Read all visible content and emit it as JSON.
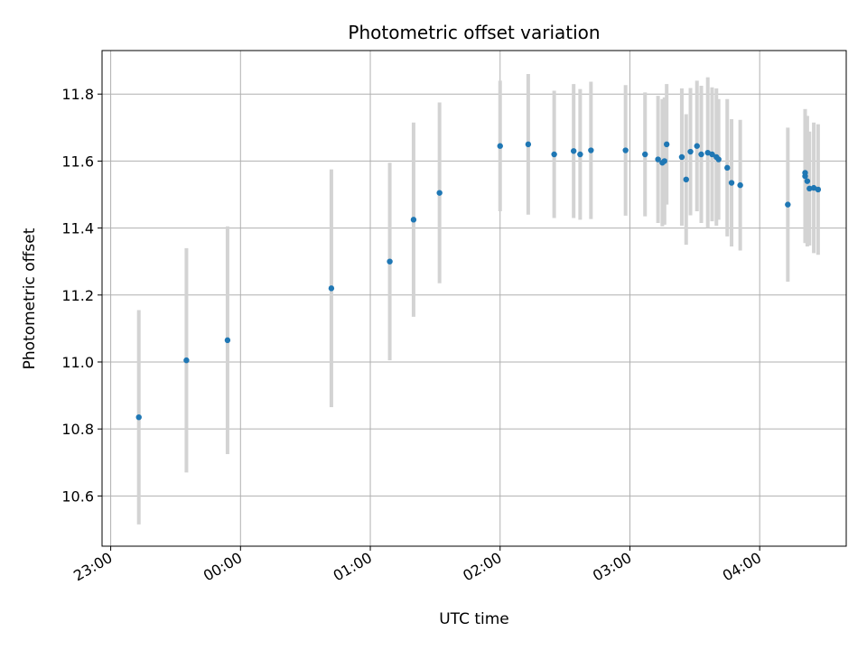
{
  "chart_data": {
    "type": "scatter",
    "title": "Photometric offset variation",
    "xlabel": "UTC time",
    "ylabel": "Photometric offset",
    "x_tick_labels": [
      "23:00",
      "00:00",
      "01:00",
      "02:00",
      "03:00",
      "04:00"
    ],
    "y_tick_labels": [
      "10.6",
      "10.8",
      "11.0",
      "11.2",
      "11.4",
      "11.6",
      "11.8"
    ],
    "x_range_minutes_since_23h": [
      -4,
      340
    ],
    "y_range": [
      10.45,
      11.93
    ],
    "grid": true,
    "colors": {
      "marker": "#1f77b4",
      "errorbar": "#d3d3d3",
      "grid": "#b0b0b0"
    },
    "points": [
      {
        "t": "23:13",
        "y": 10.835,
        "err": 0.32
      },
      {
        "t": "23:35",
        "y": 11.005,
        "err": 0.335
      },
      {
        "t": "23:54",
        "y": 11.065,
        "err": 0.34
      },
      {
        "t": "00:42",
        "y": 11.22,
        "err": 0.355
      },
      {
        "t": "01:09",
        "y": 11.3,
        "err": 0.295
      },
      {
        "t": "01:20",
        "y": 11.425,
        "err": 0.29
      },
      {
        "t": "01:32",
        "y": 11.505,
        "err": 0.27
      },
      {
        "t": "02:00",
        "y": 11.645,
        "err": 0.195
      },
      {
        "t": "02:13",
        "y": 11.65,
        "err": 0.21
      },
      {
        "t": "02:25",
        "y": 11.62,
        "err": 0.19
      },
      {
        "t": "02:34",
        "y": 11.63,
        "err": 0.2
      },
      {
        "t": "02:37",
        "y": 11.62,
        "err": 0.195
      },
      {
        "t": "02:42",
        "y": 11.632,
        "err": 0.205
      },
      {
        "t": "02:58",
        "y": 11.632,
        "err": 0.195
      },
      {
        "t": "03:07",
        "y": 11.62,
        "err": 0.185
      },
      {
        "t": "03:13",
        "y": 11.605,
        "err": 0.19
      },
      {
        "t": "03:15",
        "y": 11.595,
        "err": 0.19
      },
      {
        "t": "03:16",
        "y": 11.6,
        "err": 0.19
      },
      {
        "t": "03:17",
        "y": 11.65,
        "err": 0.18
      },
      {
        "t": "03:24",
        "y": 11.612,
        "err": 0.205
      },
      {
        "t": "03:26",
        "y": 11.545,
        "err": 0.195
      },
      {
        "t": "03:28",
        "y": 11.628,
        "err": 0.19
      },
      {
        "t": "03:31",
        "y": 11.645,
        "err": 0.195
      },
      {
        "t": "03:33",
        "y": 11.62,
        "err": 0.205
      },
      {
        "t": "03:36",
        "y": 11.625,
        "err": 0.225
      },
      {
        "t": "03:38",
        "y": 11.62,
        "err": 0.2
      },
      {
        "t": "03:40",
        "y": 11.612,
        "err": 0.205
      },
      {
        "t": "03:41",
        "y": 11.605,
        "err": 0.18
      },
      {
        "t": "03:45",
        "y": 11.58,
        "err": 0.205
      },
      {
        "t": "03:47",
        "y": 11.535,
        "err": 0.19
      },
      {
        "t": "03:51",
        "y": 11.528,
        "err": 0.195
      },
      {
        "t": "04:13",
        "y": 11.47,
        "err": 0.23
      },
      {
        "t": "04:21",
        "y": 11.555,
        "err": 0.2
      },
      {
        "t": "04:21",
        "y": 11.565,
        "err": 0.19
      },
      {
        "t": "04:22",
        "y": 11.54,
        "err": 0.195
      },
      {
        "t": "04:23",
        "y": 11.518,
        "err": 0.17
      },
      {
        "t": "04:25",
        "y": 11.52,
        "err": 0.195
      },
      {
        "t": "04:27",
        "y": 11.515,
        "err": 0.195
      }
    ]
  }
}
